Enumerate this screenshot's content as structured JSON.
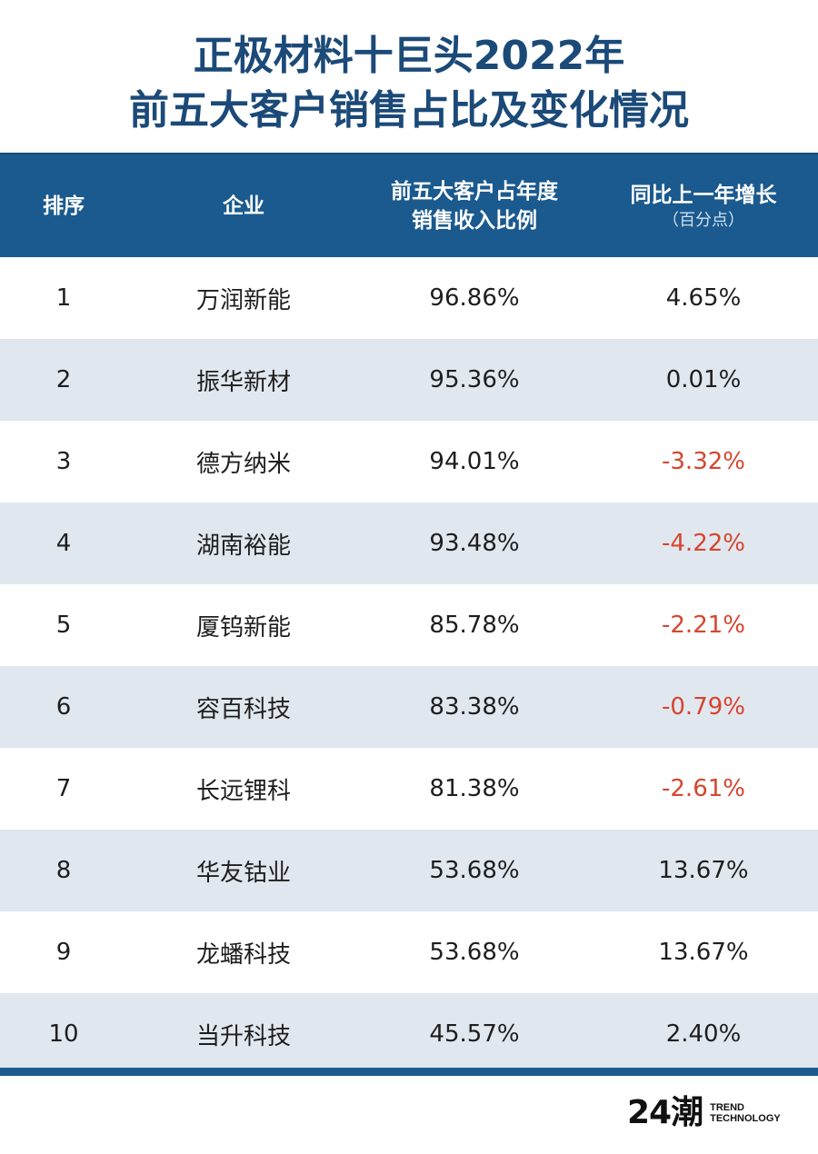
{
  "title": {
    "line1": "正极材料十巨头2022年",
    "line2": "前五大客户销售占比及变化情况"
  },
  "colors": {
    "title": "#1b4a78",
    "header_bg": "#1b5a8e",
    "row_alt": "#e1e7ef",
    "negative": "#d6452e"
  },
  "headers": {
    "rank": "排序",
    "company": "企业",
    "share_line1": "前五大客户占年度",
    "share_line2": "销售收入比例",
    "change_line1": "同比上一年增长",
    "change_sub": "（百分点）"
  },
  "chart_data": {
    "type": "table",
    "title": "正极材料十巨头2022年前五大客户销售占比及变化情况",
    "columns": [
      "排序",
      "企业",
      "前五大客户占年度销售收入比例",
      "同比上一年增长（百分点）"
    ],
    "rows": [
      {
        "rank": "1",
        "company": "万润新能",
        "share": "96.86%",
        "change": "4.65%",
        "negative": false
      },
      {
        "rank": "2",
        "company": "振华新材",
        "share": "95.36%",
        "change": "0.01%",
        "negative": false
      },
      {
        "rank": "3",
        "company": "德方纳米",
        "share": "94.01%",
        "change": "-3.32%",
        "negative": true
      },
      {
        "rank": "4",
        "company": "湖南裕能",
        "share": "93.48%",
        "change": "-4.22%",
        "negative": true
      },
      {
        "rank": "5",
        "company": "厦钨新能",
        "share": "85.78%",
        "change": "-2.21%",
        "negative": true
      },
      {
        "rank": "6",
        "company": "容百科技",
        "share": "83.38%",
        "change": "-0.79%",
        "negative": true
      },
      {
        "rank": "7",
        "company": "长远锂科",
        "share": "81.38%",
        "change": "-2.61%",
        "negative": true
      },
      {
        "rank": "8",
        "company": "华友钴业",
        "share": "53.68%",
        "change": "13.67%",
        "negative": false
      },
      {
        "rank": "9",
        "company": "龙蟠科技",
        "share": "53.68%",
        "change": "13.67%",
        "negative": false
      },
      {
        "rank": "10",
        "company": "当升科技",
        "share": "45.57%",
        "change": "2.40%",
        "negative": false
      }
    ]
  },
  "logo": {
    "mark": "24潮",
    "line1": "TREND",
    "line2": "TECHNOLOGY"
  }
}
